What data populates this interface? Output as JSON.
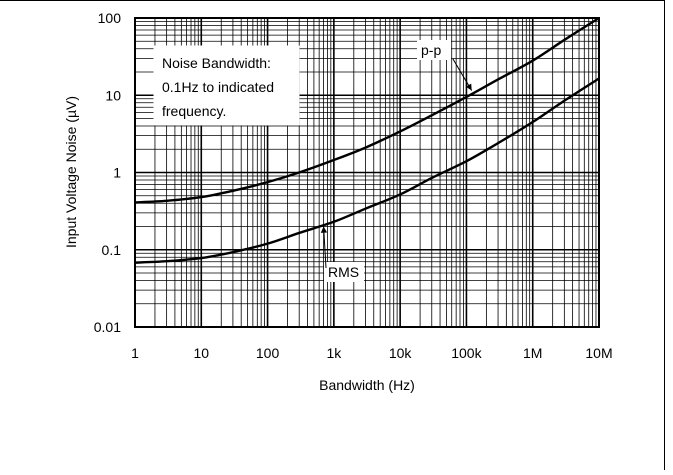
{
  "chart_data": {
    "type": "line",
    "title": "",
    "xlabel": "Bandwidth (Hz)",
    "ylabel": "Input Voltage Noise (µV)",
    "xscale": "log",
    "yscale": "log",
    "xlim": [
      1,
      10000000
    ],
    "ylim": [
      0.01,
      100
    ],
    "grid": true,
    "x_ticks": [
      {
        "value": 1,
        "label": "1"
      },
      {
        "value": 10,
        "label": "10"
      },
      {
        "value": 100,
        "label": "100"
      },
      {
        "value": 1000,
        "label": "1k"
      },
      {
        "value": 10000,
        "label": "10k"
      },
      {
        "value": 100000,
        "label": "100k"
      },
      {
        "value": 1000000,
        "label": "1M"
      },
      {
        "value": 10000000,
        "label": "10M"
      }
    ],
    "y_ticks": [
      {
        "value": 0.01,
        "label": "0.01"
      },
      {
        "value": 0.1,
        "label": "0.1"
      },
      {
        "value": 1,
        "label": "1"
      },
      {
        "value": 10,
        "label": "10"
      },
      {
        "value": 100,
        "label": "100"
      }
    ],
    "series": [
      {
        "name": "p-p",
        "x": [
          1,
          3,
          10,
          30,
          100,
          300,
          1000,
          3000,
          10000,
          30000,
          100000,
          300000,
          1000000,
          3000000,
          10000000
        ],
        "y": [
          0.41,
          0.43,
          0.48,
          0.58,
          0.75,
          1.0,
          1.45,
          2.1,
          3.4,
          5.5,
          9.5,
          16,
          28,
          52,
          100
        ]
      },
      {
        "name": "RMS",
        "x": [
          1,
          3,
          10,
          30,
          100,
          300,
          1000,
          3000,
          10000,
          30000,
          100000,
          300000,
          1000000,
          3000000,
          10000000
        ],
        "y": [
          0.068,
          0.071,
          0.078,
          0.093,
          0.12,
          0.165,
          0.23,
          0.34,
          0.52,
          0.85,
          1.4,
          2.4,
          4.5,
          8.5,
          16.5
        ]
      }
    ],
    "annotation": "Noise Bandwidth:\n0.1Hz to indicated\nfrequency."
  }
}
